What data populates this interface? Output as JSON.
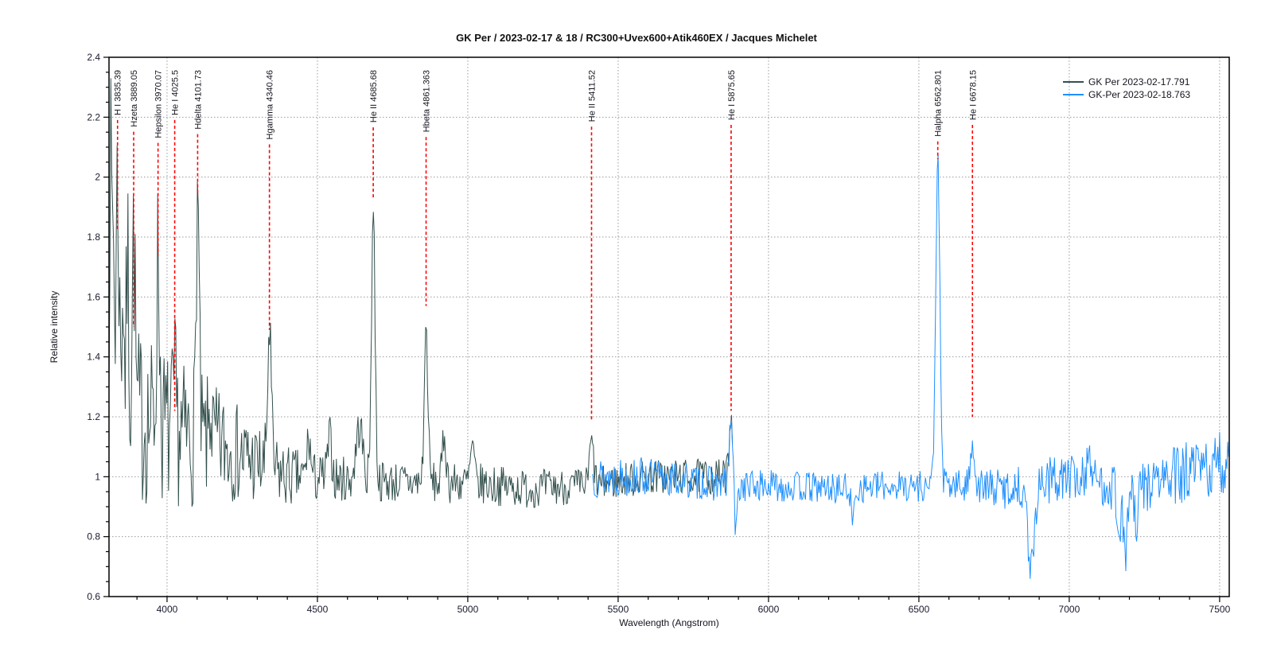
{
  "chart_data": {
    "type": "line",
    "title": "GK Per / 2023-02-17 & 18 / RC300+Uvex600+Atik460EX / Jacques Michelet",
    "xlabel": "Wavelength (Angstrom)",
    "ylabel": "Relative intensity",
    "xlim": [
      3807,
      7532
    ],
    "ylim": [
      0.6,
      2.4
    ],
    "x_ticks": [
      4000,
      4500,
      5000,
      5500,
      6000,
      6500,
      7000,
      7500
    ],
    "x_tick_labels": [
      "4000",
      "4500",
      "5000",
      "5500",
      "6000",
      "6500",
      "7000",
      "7500"
    ],
    "y_ticks": [
      0.6,
      0.8,
      1.0,
      1.2,
      1.4,
      1.6,
      1.8,
      2.0,
      2.2,
      2.4
    ],
    "y_tick_labels": [
      "0.6",
      "0.8",
      "1",
      "1.2",
      "1.4",
      "1.6",
      "1.8",
      "2",
      "2.2",
      "2.4"
    ],
    "x_minor_step": 100,
    "y_minor_step": 0.05,
    "grid": {
      "show": true,
      "style": "dotted",
      "color": "#9a9a9a"
    },
    "frame_color": "#000000",
    "annotation_line_color": "#ff0000",
    "legend": {
      "position": "top-right",
      "entries": [
        {
          "label": "GK Per  2023-02-17.791",
          "color": "#33504d"
        },
        {
          "label": "GK-Per  2023-02-18.763",
          "color": "#1e90ff"
        }
      ]
    },
    "annotations": [
      {
        "label": "H I 3835.39",
        "wavelength": 3835.39,
        "line_end": 1.82
      },
      {
        "label": "Hzeta 3889.05",
        "wavelength": 3889.05,
        "line_end": 1.5
      },
      {
        "label": "Hepsilon 3970.07",
        "wavelength": 3970.07,
        "line_end": 1.74
      },
      {
        "label": "He I 4025.5",
        "wavelength": 4025.5,
        "line_end": 1.22
      },
      {
        "label": "Hdelta 4101.73",
        "wavelength": 4101.73,
        "line_end": 1.94
      },
      {
        "label": "Hgamma 4340.46",
        "wavelength": 4340.46,
        "line_end": 1.49
      },
      {
        "label": "He II 4685.68",
        "wavelength": 4685.68,
        "line_end": 1.93
      },
      {
        "label": "Hbeta 4861.363",
        "wavelength": 4861.363,
        "line_end": 1.57
      },
      {
        "label": "He II 5411.52",
        "wavelength": 5411.52,
        "line_end": 1.19
      },
      {
        "label": "He I 5875.65",
        "wavelength": 5875.65,
        "line_end": 1.22
      },
      {
        "label": "Halpha 6562.801",
        "wavelength": 6562.801,
        "line_end": 2.06
      },
      {
        "label": "He I 6678.15",
        "wavelength": 6678.15,
        "line_end": 1.2
      }
    ],
    "series": [
      {
        "name": "GK Per  2023-02-17.791",
        "color": "#33504d",
        "seed": 7,
        "step": 3,
        "wl_range": [
          3807,
          5882
        ],
        "continuum": [
          [
            3807,
            1.3
          ],
          [
            3850,
            1.24
          ],
          [
            3900,
            1.2
          ],
          [
            3960,
            1.18
          ],
          [
            4000,
            1.16
          ],
          [
            4100,
            1.12
          ],
          [
            4200,
            1.1
          ],
          [
            4300,
            1.04
          ],
          [
            4400,
            1.0
          ],
          [
            4600,
            0.99
          ],
          [
            4800,
            0.98
          ],
          [
            5000,
            0.98
          ],
          [
            5200,
            0.96
          ],
          [
            5400,
            0.97
          ],
          [
            5600,
            1.0
          ],
          [
            5882,
            1.0
          ]
        ],
        "noise": [
          [
            3807,
            0.34
          ],
          [
            3900,
            0.3
          ],
          [
            4000,
            0.27
          ],
          [
            4150,
            0.2
          ],
          [
            4300,
            0.14
          ],
          [
            4450,
            0.09
          ],
          [
            4700,
            0.07
          ],
          [
            5000,
            0.07
          ],
          [
            5400,
            0.06
          ],
          [
            5882,
            0.06
          ]
        ],
        "peaks": [
          [
            3812,
            0.75,
            4
          ],
          [
            3821,
            0.55,
            3
          ],
          [
            3835.39,
            0.72,
            5
          ],
          [
            3853,
            0.42,
            4
          ],
          [
            3869,
            0.5,
            4
          ],
          [
            3889.05,
            0.58,
            5
          ],
          [
            3970.07,
            0.55,
            5
          ],
          [
            4025.5,
            0.14,
            5
          ],
          [
            4101.73,
            0.82,
            5
          ],
          [
            4144,
            0.12,
            5
          ],
          [
            4340.46,
            0.47,
            6
          ],
          [
            4471,
            0.13,
            6
          ],
          [
            4541,
            0.13,
            7
          ],
          [
            4640,
            0.18,
            11
          ],
          [
            4685.68,
            0.91,
            6
          ],
          [
            4861.363,
            0.51,
            6
          ],
          [
            4922,
            0.16,
            6
          ],
          [
            5015,
            0.12,
            6
          ],
          [
            5411.52,
            0.14,
            7
          ],
          [
            5875.65,
            0.21,
            6
          ]
        ]
      },
      {
        "name": "GK-Per  2023-02-18.763",
        "color": "#1e90ff",
        "seed": 13,
        "step": 3,
        "wl_range": [
          5415,
          7532
        ],
        "continuum": [
          [
            5415,
            1.0
          ],
          [
            5600,
            1.0
          ],
          [
            5880,
            0.97
          ],
          [
            6000,
            0.97
          ],
          [
            6250,
            0.96
          ],
          [
            6400,
            0.97
          ],
          [
            6600,
            0.97
          ],
          [
            6800,
            0.96
          ],
          [
            7000,
            1.0
          ],
          [
            7100,
            0.98
          ],
          [
            7200,
            0.96
          ],
          [
            7350,
            1.0
          ],
          [
            7532,
            1.04
          ]
        ],
        "noise": [
          [
            5415,
            0.07
          ],
          [
            5900,
            0.055
          ],
          [
            6400,
            0.05
          ],
          [
            6700,
            0.06
          ],
          [
            6900,
            0.08
          ],
          [
            7100,
            0.08
          ],
          [
            7300,
            0.1
          ],
          [
            7532,
            0.12
          ]
        ],
        "peaks": [
          [
            5875.65,
            0.22,
            6
          ],
          [
            5891,
            -0.16,
            5
          ],
          [
            6280,
            -0.12,
            5
          ],
          [
            6562.801,
            1.07,
            7
          ],
          [
            6678.15,
            0.17,
            6
          ],
          [
            6867,
            -0.3,
            6
          ],
          [
            6884,
            -0.2,
            5
          ],
          [
            7065,
            0.12,
            6
          ],
          [
            7165,
            -0.12,
            6
          ],
          [
            7186,
            -0.2,
            8
          ],
          [
            7223,
            -0.16,
            6
          ]
        ]
      }
    ]
  }
}
